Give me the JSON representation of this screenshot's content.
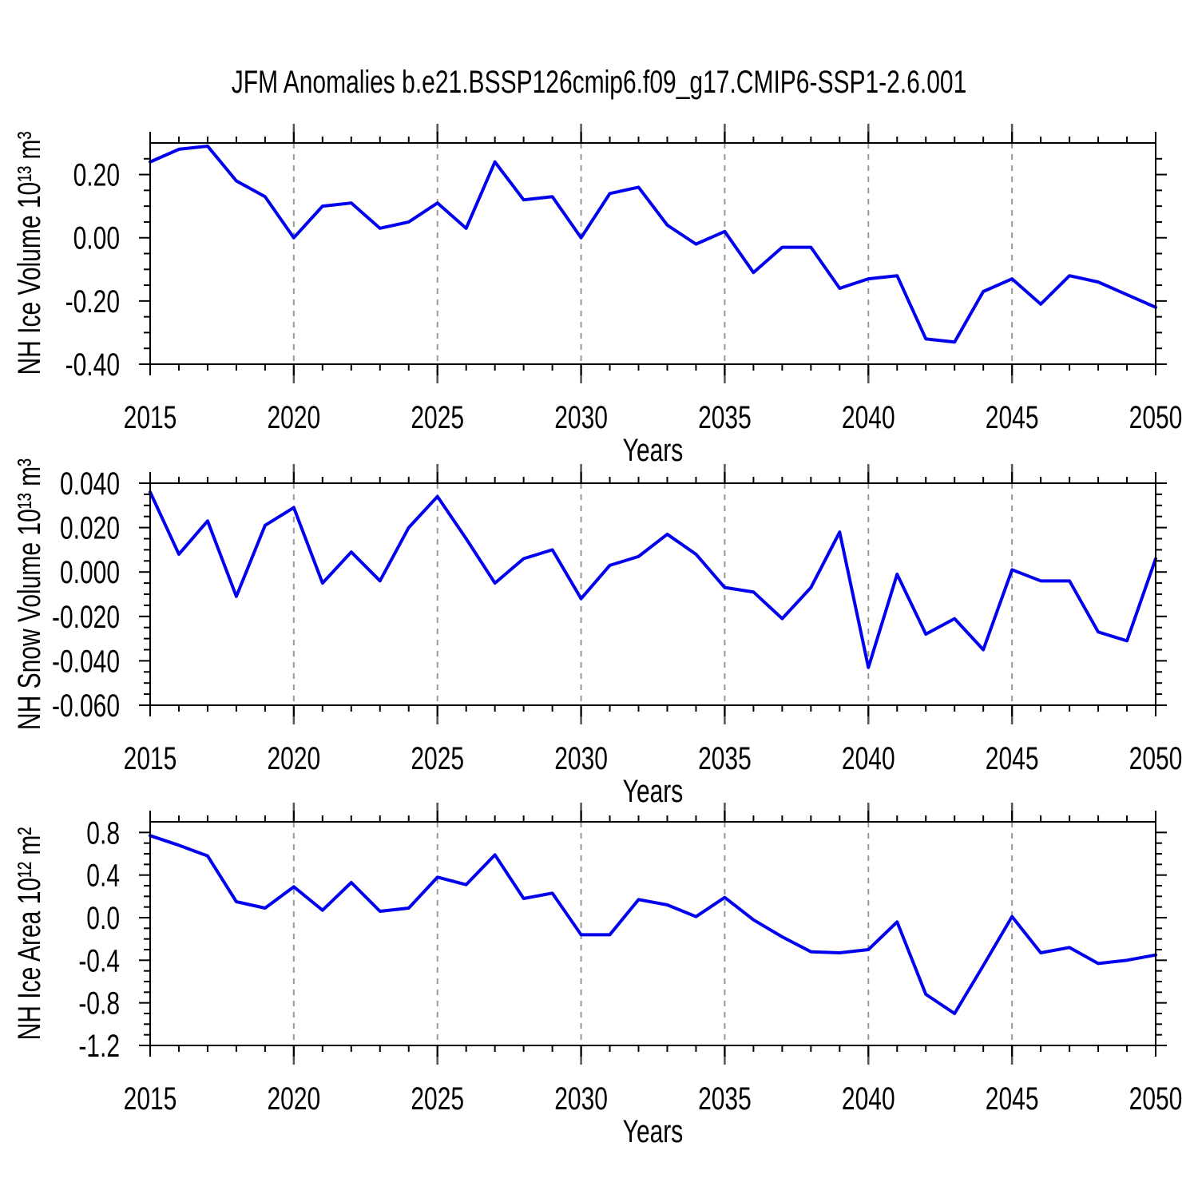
{
  "title": "JFM Anomalies b.e21.BSSP126cmip6.f09_g17.CMIP6-SSP1-2.6.001",
  "line_color": "#0000ee",
  "grid_color": "#999999",
  "axis_color": "#000000",
  "chart_data": [
    {
      "type": "line",
      "xlabel": "Years",
      "ylabel": "NH Ice Volume 10¹³ m³",
      "xlim": [
        2015,
        2050
      ],
      "ylim": [
        -0.4,
        0.3
      ],
      "grid_on": true,
      "grid_x": [
        2020,
        2025,
        2030,
        2035,
        2040,
        2045
      ],
      "xticks": [
        2015,
        2020,
        2025,
        2030,
        2035,
        2040,
        2045,
        2050
      ],
      "xtick_labels": [
        "2015",
        "2020",
        "2025",
        "2030",
        "2035",
        "2040",
        "2045",
        "2050"
      ],
      "yticks": [
        0.2,
        0.0,
        -0.2,
        -0.4
      ],
      "ytick_labels": [
        "0.20",
        "0.00",
        "-0.20",
        "-0.40"
      ],
      "minor_y": 0.05,
      "x": [
        2015,
        2016,
        2017,
        2018,
        2019,
        2020,
        2021,
        2022,
        2023,
        2024,
        2025,
        2026,
        2027,
        2028,
        2029,
        2030,
        2031,
        2032,
        2033,
        2034,
        2035,
        2036,
        2037,
        2038,
        2039,
        2040,
        2041,
        2042,
        2043,
        2044,
        2045,
        2046,
        2047,
        2048,
        2049,
        2050
      ],
      "values": [
        0.24,
        0.28,
        0.29,
        0.18,
        0.13,
        0.0,
        0.1,
        0.11,
        0.03,
        0.05,
        0.11,
        0.03,
        0.24,
        0.12,
        0.13,
        0.0,
        0.14,
        0.16,
        0.04,
        -0.02,
        0.02,
        -0.11,
        -0.03,
        -0.03,
        -0.16,
        -0.13,
        -0.12,
        -0.32,
        -0.33,
        -0.17,
        -0.13,
        -0.21,
        -0.12,
        -0.14,
        -0.18,
        -0.22
      ]
    },
    {
      "type": "line",
      "xlabel": "Years",
      "ylabel": "NH Snow Volume 10¹³ m³",
      "xlim": [
        2015,
        2050
      ],
      "ylim": [
        -0.06,
        0.04
      ],
      "grid_on": true,
      "grid_x": [
        2020,
        2025,
        2030,
        2035,
        2040,
        2045
      ],
      "xticks": [
        2015,
        2020,
        2025,
        2030,
        2035,
        2040,
        2045,
        2050
      ],
      "xtick_labels": [
        "2015",
        "2020",
        "2025",
        "2030",
        "2035",
        "2040",
        "2045",
        "2050"
      ],
      "yticks": [
        0.04,
        0.02,
        0.0,
        -0.02,
        -0.04,
        -0.06
      ],
      "ytick_labels": [
        "0.040",
        "0.020",
        "0.000",
        "-0.020",
        "-0.040",
        "-0.060"
      ],
      "minor_y": 0.005,
      "x": [
        2015,
        2016,
        2017,
        2018,
        2019,
        2020,
        2021,
        2022,
        2023,
        2024,
        2025,
        2026,
        2027,
        2028,
        2029,
        2030,
        2031,
        2032,
        2033,
        2034,
        2035,
        2036,
        2037,
        2038,
        2039,
        2040,
        2041,
        2042,
        2043,
        2044,
        2045,
        2046,
        2047,
        2048,
        2049,
        2050
      ],
      "values": [
        0.036,
        0.008,
        0.023,
        -0.011,
        0.021,
        0.029,
        -0.005,
        0.009,
        -0.004,
        0.02,
        0.034,
        0.015,
        -0.005,
        0.006,
        0.01,
        -0.012,
        0.003,
        0.007,
        0.017,
        0.008,
        -0.007,
        -0.009,
        -0.021,
        -0.007,
        0.018,
        -0.043,
        -0.001,
        -0.028,
        -0.021,
        -0.035,
        0.001,
        -0.004,
        -0.004,
        -0.027,
        -0.031,
        0.006
      ]
    },
    {
      "type": "line",
      "xlabel": "Years",
      "ylabel": "NH Ice Area 10¹² m²",
      "xlim": [
        2015,
        2050
      ],
      "ylim": [
        -1.2,
        0.9
      ],
      "grid_on": true,
      "grid_x": [
        2020,
        2025,
        2030,
        2035,
        2040,
        2045
      ],
      "xticks": [
        2015,
        2020,
        2025,
        2030,
        2035,
        2040,
        2045,
        2050
      ],
      "xtick_labels": [
        "2015",
        "2020",
        "2025",
        "2030",
        "2035",
        "2040",
        "2045",
        "2050"
      ],
      "yticks": [
        0.8,
        0.4,
        0.0,
        -0.4,
        -0.8,
        -1.2
      ],
      "ytick_labels": [
        "0.8",
        "0.4",
        "0.0",
        "-0.4",
        "-0.8",
        "-1.2"
      ],
      "minor_y": 0.1,
      "x": [
        2015,
        2016,
        2017,
        2018,
        2019,
        2020,
        2021,
        2022,
        2023,
        2024,
        2025,
        2026,
        2027,
        2028,
        2029,
        2030,
        2031,
        2032,
        2033,
        2034,
        2035,
        2036,
        2037,
        2038,
        2039,
        2040,
        2041,
        2042,
        2043,
        2044,
        2045,
        2046,
        2047,
        2048,
        2049,
        2050
      ],
      "values": [
        0.77,
        0.68,
        0.58,
        0.15,
        0.09,
        0.29,
        0.07,
        0.33,
        0.06,
        0.09,
        0.38,
        0.31,
        0.59,
        0.18,
        0.23,
        -0.16,
        -0.16,
        0.17,
        0.12,
        0.01,
        0.19,
        -0.02,
        -0.18,
        -0.32,
        -0.33,
        -0.3,
        -0.04,
        -0.72,
        -0.9,
        -0.45,
        0.01,
        -0.33,
        -0.28,
        -0.43,
        -0.4,
        -0.35
      ]
    }
  ]
}
